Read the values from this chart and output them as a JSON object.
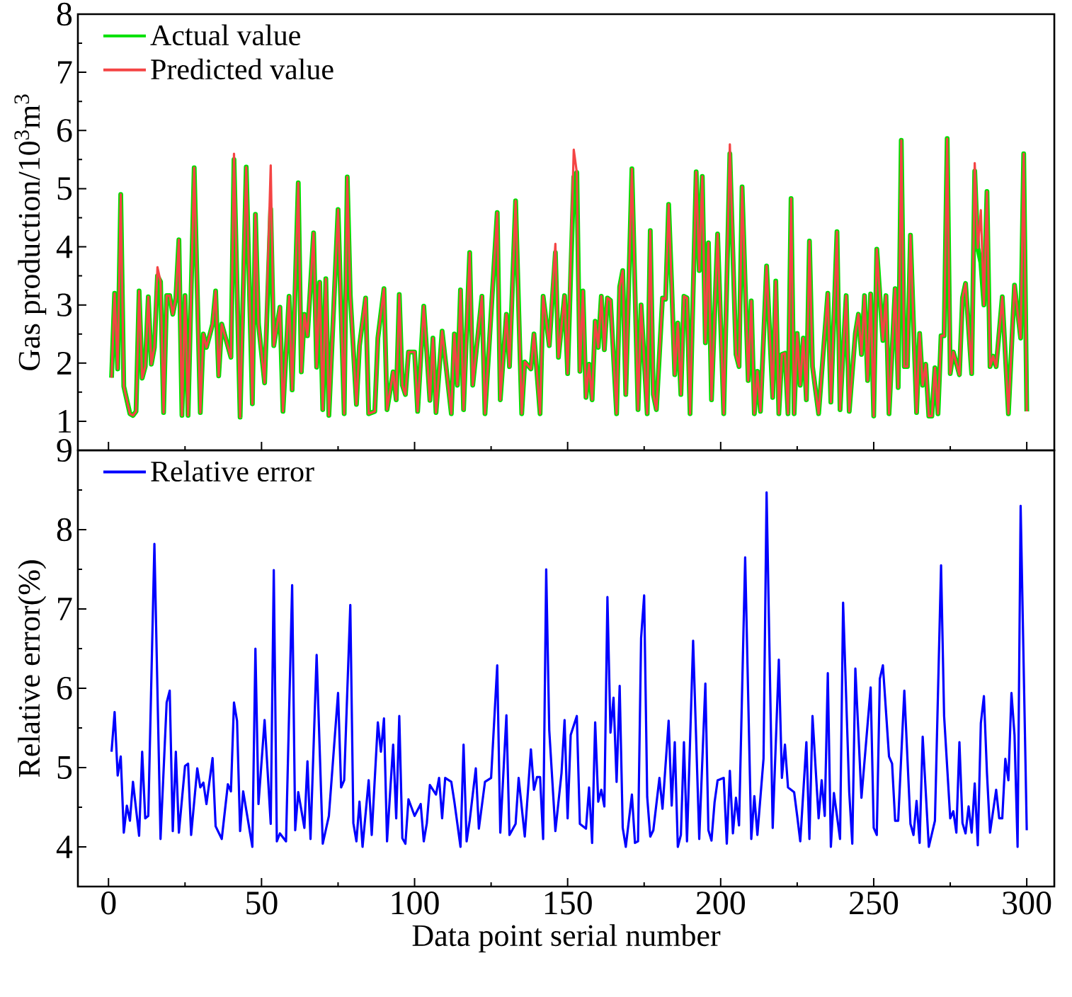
{
  "chart_data": [
    {
      "type": "line",
      "ylabel": "Gas production/10$^{3}$m$^{3}$",
      "xlim": [
        -10,
        309
      ],
      "ylim": [
        0.5,
        8
      ],
      "xticks": [
        0,
        50,
        100,
        150,
        200,
        250,
        300
      ],
      "yticks": [
        1,
        2,
        3,
        4,
        5,
        6,
        7,
        8
      ],
      "tick_labels": "y",
      "legend": "top left",
      "x": [
        1,
        2,
        3,
        4,
        5,
        7,
        8,
        9,
        10,
        11,
        12,
        13,
        14,
        15,
        16,
        17,
        18,
        19,
        20,
        21,
        22,
        23,
        24,
        25,
        26,
        28,
        30,
        31,
        32,
        34,
        35,
        36,
        37,
        40,
        41,
        43,
        45,
        47,
        48,
        49,
        51,
        53,
        54,
        56,
        57,
        59,
        60,
        62,
        63,
        64,
        65,
        67,
        68,
        69,
        70,
        71,
        72,
        75,
        77,
        78,
        79,
        81,
        82,
        84,
        85,
        87,
        88,
        90,
        91,
        93,
        94,
        95,
        96,
        97,
        98,
        100,
        101,
        103,
        105,
        106,
        107,
        109,
        112,
        113,
        114,
        115,
        116,
        118,
        119,
        122,
        123,
        127,
        128,
        130,
        131,
        133,
        135,
        136,
        138,
        139,
        141,
        142,
        144,
        146,
        147,
        149,
        150,
        152,
        153,
        154,
        155,
        156,
        157,
        158,
        159,
        160,
        161,
        162,
        163,
        164,
        166,
        167,
        168,
        169,
        171,
        173,
        174,
        176,
        177,
        178,
        179,
        181,
        182,
        183,
        184,
        185,
        186,
        187,
        188,
        189,
        190,
        192,
        193,
        194,
        195,
        196,
        197,
        199,
        201,
        203,
        205,
        206,
        207,
        209,
        210,
        211,
        212,
        213,
        215,
        217,
        218,
        219,
        220,
        221,
        222,
        223,
        224,
        225,
        226,
        227,
        228,
        229,
        230,
        232,
        235,
        236,
        238,
        239,
        241,
        242,
        244,
        245,
        246,
        247,
        248,
        249,
        250,
        251,
        253,
        254,
        255,
        257,
        258,
        259,
        260,
        261,
        262,
        264,
        265,
        266,
        267,
        268,
        269,
        270,
        271,
        272,
        273,
        274,
        275,
        276,
        277,
        278,
        279,
        280,
        282,
        283,
        284,
        285,
        286,
        287,
        288,
        289,
        290,
        292,
        294,
        296,
        298,
        299,
        300
      ],
      "series": [
        {
          "name": "Actual value",
          "color": "#00e000",
          "values": [
            1.75,
            3.2,
            1.9,
            4.9,
            1.6,
            1.13,
            1.1,
            1.17,
            3.24,
            1.74,
            1.94,
            3.14,
            1.98,
            2.27,
            3.5,
            3.4,
            1.15,
            3.16,
            3.16,
            2.84,
            3.12,
            4.12,
            1.1,
            3.16,
            1.1,
            5.36,
            1.15,
            2.5,
            2.27,
            2.67,
            3.24,
            1.78,
            2.67,
            2.1,
            5.5,
            1.07,
            5.37,
            1.3,
            4.56,
            2.67,
            1.66,
            4.65,
            2.3,
            2.96,
            1.17,
            3.15,
            1.54,
            5.1,
            1.85,
            2.84,
            2.47,
            4.24,
            1.93,
            3.39,
            1.2,
            3.45,
            1.1,
            4.64,
            1.13,
            5.2,
            3.16,
            1.29,
            2.3,
            3.12,
            1.13,
            1.17,
            2.43,
            3.28,
            1.2,
            1.85,
            1.37,
            3.18,
            1.62,
            1.46,
            2.19,
            2.19,
            1.17,
            2.98,
            1.36,
            2.43,
            1.15,
            2.55,
            1.13,
            2.5,
            1.62,
            3.26,
            1.2,
            3.9,
            1.62,
            3.15,
            1.13,
            4.59,
            1.37,
            2.84,
            1.94,
            4.79,
            1.13,
            2.02,
            1.9,
            2.5,
            1.13,
            3.15,
            2.3,
            3.9,
            2.1,
            3.16,
            1.82,
            5.2,
            5.28,
            1.86,
            3.24,
            1.41,
            1.98,
            1.37,
            2.72,
            2.27,
            3.15,
            2.23,
            3.12,
            3.08,
            1.13,
            3.31,
            3.59,
            1.46,
            5.34,
            1.2,
            3.0,
            1.13,
            4.28,
            1.46,
            1.2,
            3.12,
            3.1,
            4.73,
            3.33,
            1.8,
            2.69,
            1.46,
            3.15,
            3.12,
            1.13,
            5.29,
            3.59,
            5.21,
            2.35,
            4.07,
            1.37,
            4.22,
            1.13,
            5.6,
            2.15,
            1.94,
            5.03,
            1.7,
            3.07,
            1.13,
            1.86,
            1.17,
            3.67,
            1.41,
            3.41,
            1.13,
            2.15,
            2.17,
            1.13,
            4.83,
            1.13,
            2.51,
            1.62,
            2.43,
            1.37,
            4.1,
            1.94,
            1.13,
            3.2,
            1.33,
            4.26,
            1.2,
            3.16,
            1.17,
            2.51,
            2.84,
            2.15,
            3.16,
            1.7,
            3.19,
            1.09,
            3.96,
            2.39,
            3.16,
            1.13,
            3.28,
            1.58,
            5.83,
            1.94,
            1.94,
            4.2,
            1.15,
            2.51,
            1.62,
            1.98,
            1.09,
            1.09,
            1.92,
            1.13,
            2.47,
            2.47,
            5.86,
            1.82,
            2.19,
            2.0,
            1.8,
            3.12,
            3.37,
            1.82,
            5.3,
            3.98,
            3.73,
            3.0,
            4.95,
            1.94,
            2.12,
            1.94,
            3.14,
            1.13,
            3.34,
            2.43,
            5.6,
            1.17
          ]
        },
        {
          "name": "Predicted value",
          "color": "#f44444",
          "values": [
            1.75,
            3.2,
            1.9,
            4.9,
            1.6,
            1.13,
            1.1,
            1.17,
            3.24,
            1.74,
            1.94,
            3.14,
            1.98,
            2.27,
            3.65,
            3.4,
            1.15,
            3.16,
            3.16,
            2.84,
            3.12,
            4.12,
            1.1,
            3.16,
            1.1,
            5.36,
            1.15,
            2.5,
            2.27,
            2.67,
            3.24,
            1.78,
            2.67,
            2.1,
            5.6,
            1.07,
            5.37,
            1.3,
            4.56,
            2.67,
            1.66,
            5.4,
            2.3,
            2.96,
            1.17,
            3.15,
            1.54,
            5.1,
            1.85,
            2.84,
            2.47,
            4.24,
            1.93,
            3.39,
            1.2,
            3.45,
            1.1,
            4.64,
            1.13,
            5.2,
            3.16,
            1.29,
            2.3,
            3.12,
            1.13,
            1.17,
            2.43,
            3.28,
            1.2,
            1.85,
            1.37,
            3.18,
            1.62,
            1.46,
            2.19,
            2.19,
            1.17,
            2.98,
            1.36,
            2.43,
            1.15,
            2.55,
            1.13,
            2.5,
            1.62,
            3.26,
            1.2,
            3.9,
            1.62,
            3.15,
            1.13,
            4.59,
            1.37,
            2.84,
            1.94,
            4.79,
            1.13,
            2.02,
            1.9,
            2.5,
            1.13,
            3.15,
            2.3,
            4.05,
            2.1,
            3.16,
            1.82,
            5.67,
            5.28,
            1.86,
            3.24,
            1.41,
            1.98,
            1.37,
            2.72,
            2.27,
            3.15,
            2.23,
            3.12,
            3.08,
            1.13,
            3.31,
            3.59,
            1.46,
            5.34,
            1.2,
            3.0,
            1.13,
            4.28,
            1.46,
            1.2,
            3.12,
            3.1,
            4.73,
            3.33,
            1.8,
            2.69,
            1.46,
            3.15,
            3.12,
            1.13,
            5.29,
            3.59,
            5.21,
            2.35,
            4.07,
            1.37,
            4.22,
            1.13,
            5.76,
            2.15,
            1.94,
            5.03,
            1.7,
            3.07,
            1.13,
            1.86,
            1.17,
            3.67,
            1.41,
            3.41,
            1.13,
            2.15,
            2.17,
            1.13,
            4.83,
            1.13,
            2.51,
            1.62,
            2.43,
            1.37,
            4.1,
            1.94,
            1.13,
            3.2,
            1.33,
            4.26,
            1.2,
            3.16,
            1.17,
            2.51,
            2.84,
            2.15,
            3.16,
            1.7,
            3.19,
            1.09,
            3.96,
            2.39,
            3.16,
            1.13,
            3.28,
            1.58,
            5.83,
            1.94,
            1.94,
            4.2,
            1.15,
            2.51,
            1.62,
            1.98,
            1.09,
            1.09,
            1.92,
            1.13,
            2.47,
            2.47,
            5.86,
            1.82,
            2.19,
            2.0,
            1.8,
            3.12,
            3.37,
            1.82,
            5.44,
            3.98,
            4.63,
            3.0,
            4.95,
            1.94,
            2.12,
            1.94,
            3.14,
            1.13,
            3.34,
            2.43,
            5.6,
            1.17
          ]
        }
      ]
    },
    {
      "type": "line",
      "xlabel": "Data point serial number",
      "ylabel": "Relative error(%)",
      "xlim": [
        -10,
        309
      ],
      "ylim": [
        3.5,
        9
      ],
      "xticks": [
        0,
        50,
        100,
        150,
        200,
        250,
        300
      ],
      "yticks": [
        4,
        5,
        6,
        7,
        8,
        9
      ],
      "legend": "top left",
      "x": [
        1,
        2,
        3,
        4,
        5,
        6,
        7,
        8,
        10,
        11,
        12,
        13,
        15,
        17,
        19,
        20,
        21,
        22,
        23,
        25,
        26,
        27,
        29,
        30,
        31,
        32,
        34,
        35,
        37,
        39,
        40,
        41,
        42,
        43,
        44,
        47,
        48,
        49,
        51,
        53,
        54,
        55,
        56,
        58,
        60,
        61,
        62,
        64,
        65,
        66,
        68,
        70,
        72,
        75,
        76,
        77,
        79,
        80,
        81,
        82,
        83,
        85,
        86,
        88,
        89,
        90,
        91,
        93,
        94,
        95,
        96,
        97,
        98,
        100,
        102,
        103,
        104,
        105,
        107,
        108,
        109,
        110,
        112,
        113,
        115,
        116,
        117,
        118,
        120,
        121,
        123,
        125,
        127,
        128,
        130,
        131,
        133,
        134,
        136,
        138,
        139,
        140,
        141,
        142,
        143,
        144,
        146,
        148,
        149,
        150,
        151,
        153,
        154,
        156,
        157,
        158,
        159,
        160,
        161,
        162,
        163,
        164,
        165,
        166,
        167,
        168,
        169,
        171,
        172,
        173,
        174,
        175,
        176,
        177,
        178,
        180,
        181,
        183,
        184,
        185,
        186,
        187,
        188,
        189,
        191,
        193,
        195,
        196,
        197,
        198,
        199,
        201,
        202,
        203,
        204,
        205,
        206,
        208,
        210,
        211,
        212,
        214,
        215,
        217,
        219,
        220,
        221,
        222,
        224,
        225,
        226,
        228,
        229,
        230,
        232,
        233,
        234,
        235,
        236,
        237,
        239,
        240,
        242,
        243,
        244,
        246,
        249,
        250,
        251,
        252,
        253,
        255,
        256,
        257,
        258,
        260,
        262,
        263,
        264,
        265,
        266,
        268,
        270,
        272,
        273,
        275,
        276,
        277,
        278,
        279,
        280,
        281,
        282,
        283,
        284,
        285,
        286,
        287,
        288,
        290,
        291,
        292,
        293,
        294,
        295,
        296,
        297,
        298,
        300
      ],
      "series": [
        {
          "name": "Relative error",
          "color": "#0000ff",
          "values": [
            5.2,
            5.7,
            4.9,
            5.14,
            4.18,
            4.52,
            4.33,
            4.82,
            4.14,
            5.2,
            4.36,
            4.39,
            7.82,
            4.1,
            5.82,
            5.97,
            4.2,
            5.2,
            4.18,
            5.02,
            5.05,
            4.15,
            4.99,
            4.75,
            4.81,
            4.54,
            5.12,
            4.26,
            4.1,
            4.79,
            4.7,
            5.82,
            5.59,
            4.2,
            4.7,
            4.0,
            6.5,
            4.54,
            5.6,
            4.29,
            7.49,
            4.07,
            4.17,
            4.07,
            7.3,
            4.21,
            4.69,
            4.24,
            5.08,
            4.1,
            6.42,
            4.04,
            4.39,
            5.94,
            4.75,
            4.84,
            7.05,
            4.3,
            4.07,
            4.57,
            4.0,
            4.84,
            4.15,
            5.57,
            5.2,
            5.62,
            4.07,
            5.29,
            4.36,
            5.65,
            4.11,
            4.04,
            4.6,
            4.39,
            4.54,
            4.07,
            4.3,
            4.78,
            4.66,
            4.87,
            4.36,
            4.87,
            4.82,
            4.57,
            4.0,
            5.29,
            4.07,
            4.33,
            4.99,
            4.23,
            4.82,
            4.87,
            6.29,
            4.18,
            5.66,
            4.15,
            4.29,
            4.87,
            4.13,
            5.23,
            4.72,
            4.88,
            4.88,
            4.1,
            7.5,
            5.47,
            4.2,
            4.93,
            5.6,
            4.36,
            5.41,
            5.65,
            4.29,
            4.23,
            4.75,
            4.05,
            5.57,
            4.57,
            4.72,
            4.51,
            7.15,
            5.44,
            5.88,
            4.82,
            6.03,
            4.24,
            4.0,
            4.66,
            4.05,
            4.07,
            6.63,
            7.17,
            4.63,
            4.13,
            4.21,
            4.87,
            4.48,
            5.59,
            4.52,
            5.32,
            4.0,
            4.15,
            5.32,
            4.07,
            6.6,
            4.1,
            6.06,
            4.21,
            4.08,
            4.56,
            4.84,
            4.87,
            4.04,
            4.96,
            4.17,
            4.62,
            4.27,
            7.65,
            4.1,
            4.64,
            4.15,
            5.11,
            8.47,
            4.24,
            6.36,
            4.87,
            5.29,
            4.75,
            4.69,
            4.39,
            4.07,
            5.32,
            4.1,
            5.65,
            4.36,
            4.84,
            4.39,
            6.19,
            4.0,
            4.68,
            4.1,
            7.08,
            4.69,
            4.04,
            6.25,
            4.62,
            6.01,
            4.24,
            4.15,
            6.12,
            6.29,
            5.14,
            5.05,
            4.33,
            4.33,
            5.97,
            4.29,
            4.15,
            4.58,
            4.05,
            5.39,
            4.0,
            4.33,
            7.55,
            5.65,
            4.36,
            4.45,
            4.18,
            5.32,
            4.3,
            4.17,
            4.51,
            4.18,
            4.8,
            4.02,
            5.56,
            5.9,
            4.93,
            4.18,
            4.72,
            4.36,
            4.36,
            5.11,
            4.84,
            5.94,
            5.41,
            4.0,
            8.3,
            4.21
          ]
        }
      ]
    }
  ]
}
